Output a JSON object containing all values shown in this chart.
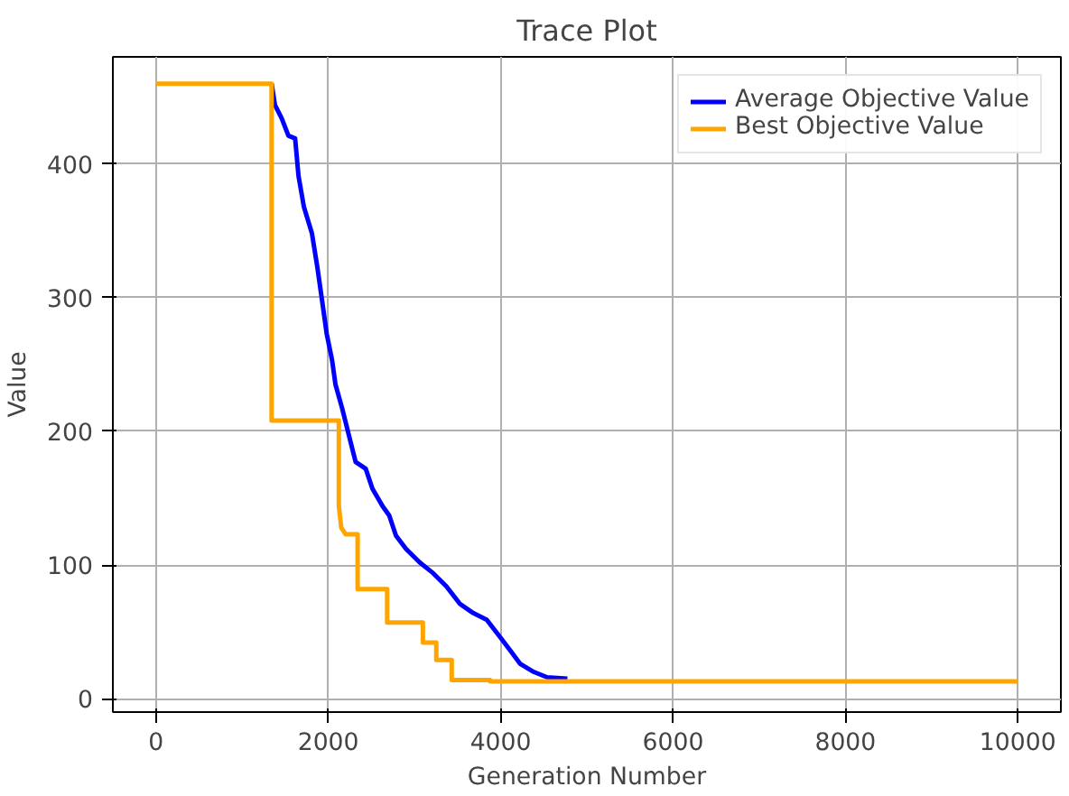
{
  "chart_data": {
    "type": "line",
    "title": "Trace Plot",
    "xlabel": "Generation Number",
    "ylabel": "Value",
    "xlim": [
      -500,
      10500
    ],
    "ylim": [
      -10,
      480
    ],
    "xticks": [
      0,
      2000,
      4000,
      6000,
      8000,
      10000
    ],
    "yticks": [
      0,
      100,
      200,
      300,
      400
    ],
    "grid": true,
    "legend": "top right",
    "marker": "none",
    "line_style": "solid",
    "series": [
      {
        "name": "Average Objective Value",
        "color": "#0000ff",
        "x": [
          1342,
          1381,
          1459,
          1537,
          1615,
          1654,
          1716,
          1810,
          1872,
          1927,
          1981,
          2044,
          2083,
          2161,
          2239,
          2317,
          2434,
          2512,
          2629,
          2707,
          2785,
          2902,
          3058,
          3214,
          3370,
          3526,
          3682,
          3838,
          3994,
          4111,
          4228,
          4384,
          4540,
          4774
        ],
        "values": [
          460,
          444,
          434,
          421,
          419,
          391,
          368,
          348,
          323,
          298,
          273,
          253,
          235,
          217,
          197,
          177,
          172,
          157,
          144,
          137,
          122,
          112,
          102,
          94,
          84,
          71,
          64,
          59,
          46,
          36,
          26,
          20,
          16,
          15
        ]
      },
      {
        "name": "Best Objective Value",
        "color": "#ffa500",
        "x": [
          0,
          1342,
          1342,
          2122,
          2122,
          2150,
          2200,
          2340,
          2340,
          2683,
          2683,
          3097,
          3097,
          3253,
          3253,
          3432,
          3432,
          3877,
          3877,
          10000
        ],
        "values": [
          460,
          460,
          208,
          208,
          144,
          128,
          123,
          123,
          82,
          82,
          57,
          57,
          42,
          42,
          29,
          29,
          14,
          14,
          13,
          13
        ]
      }
    ]
  }
}
